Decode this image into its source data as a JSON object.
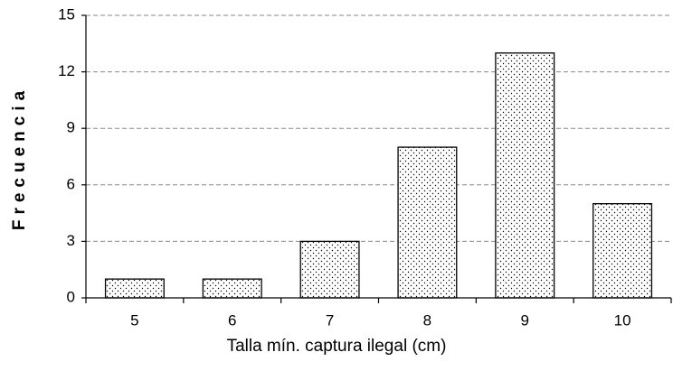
{
  "chart_data": {
    "type": "bar",
    "categories": [
      "5",
      "6",
      "7",
      "8",
      "9",
      "10"
    ],
    "values": [
      1,
      1,
      3,
      8,
      13,
      5
    ],
    "color": "#000000",
    "ylim": [
      0,
      15
    ],
    "yticks": [
      0,
      3,
      6,
      9,
      12,
      15
    ],
    "grid": true,
    "ylabel": "Frecuencia",
    "xlabel": "Talla mín. captura ilegal (cm)"
  }
}
